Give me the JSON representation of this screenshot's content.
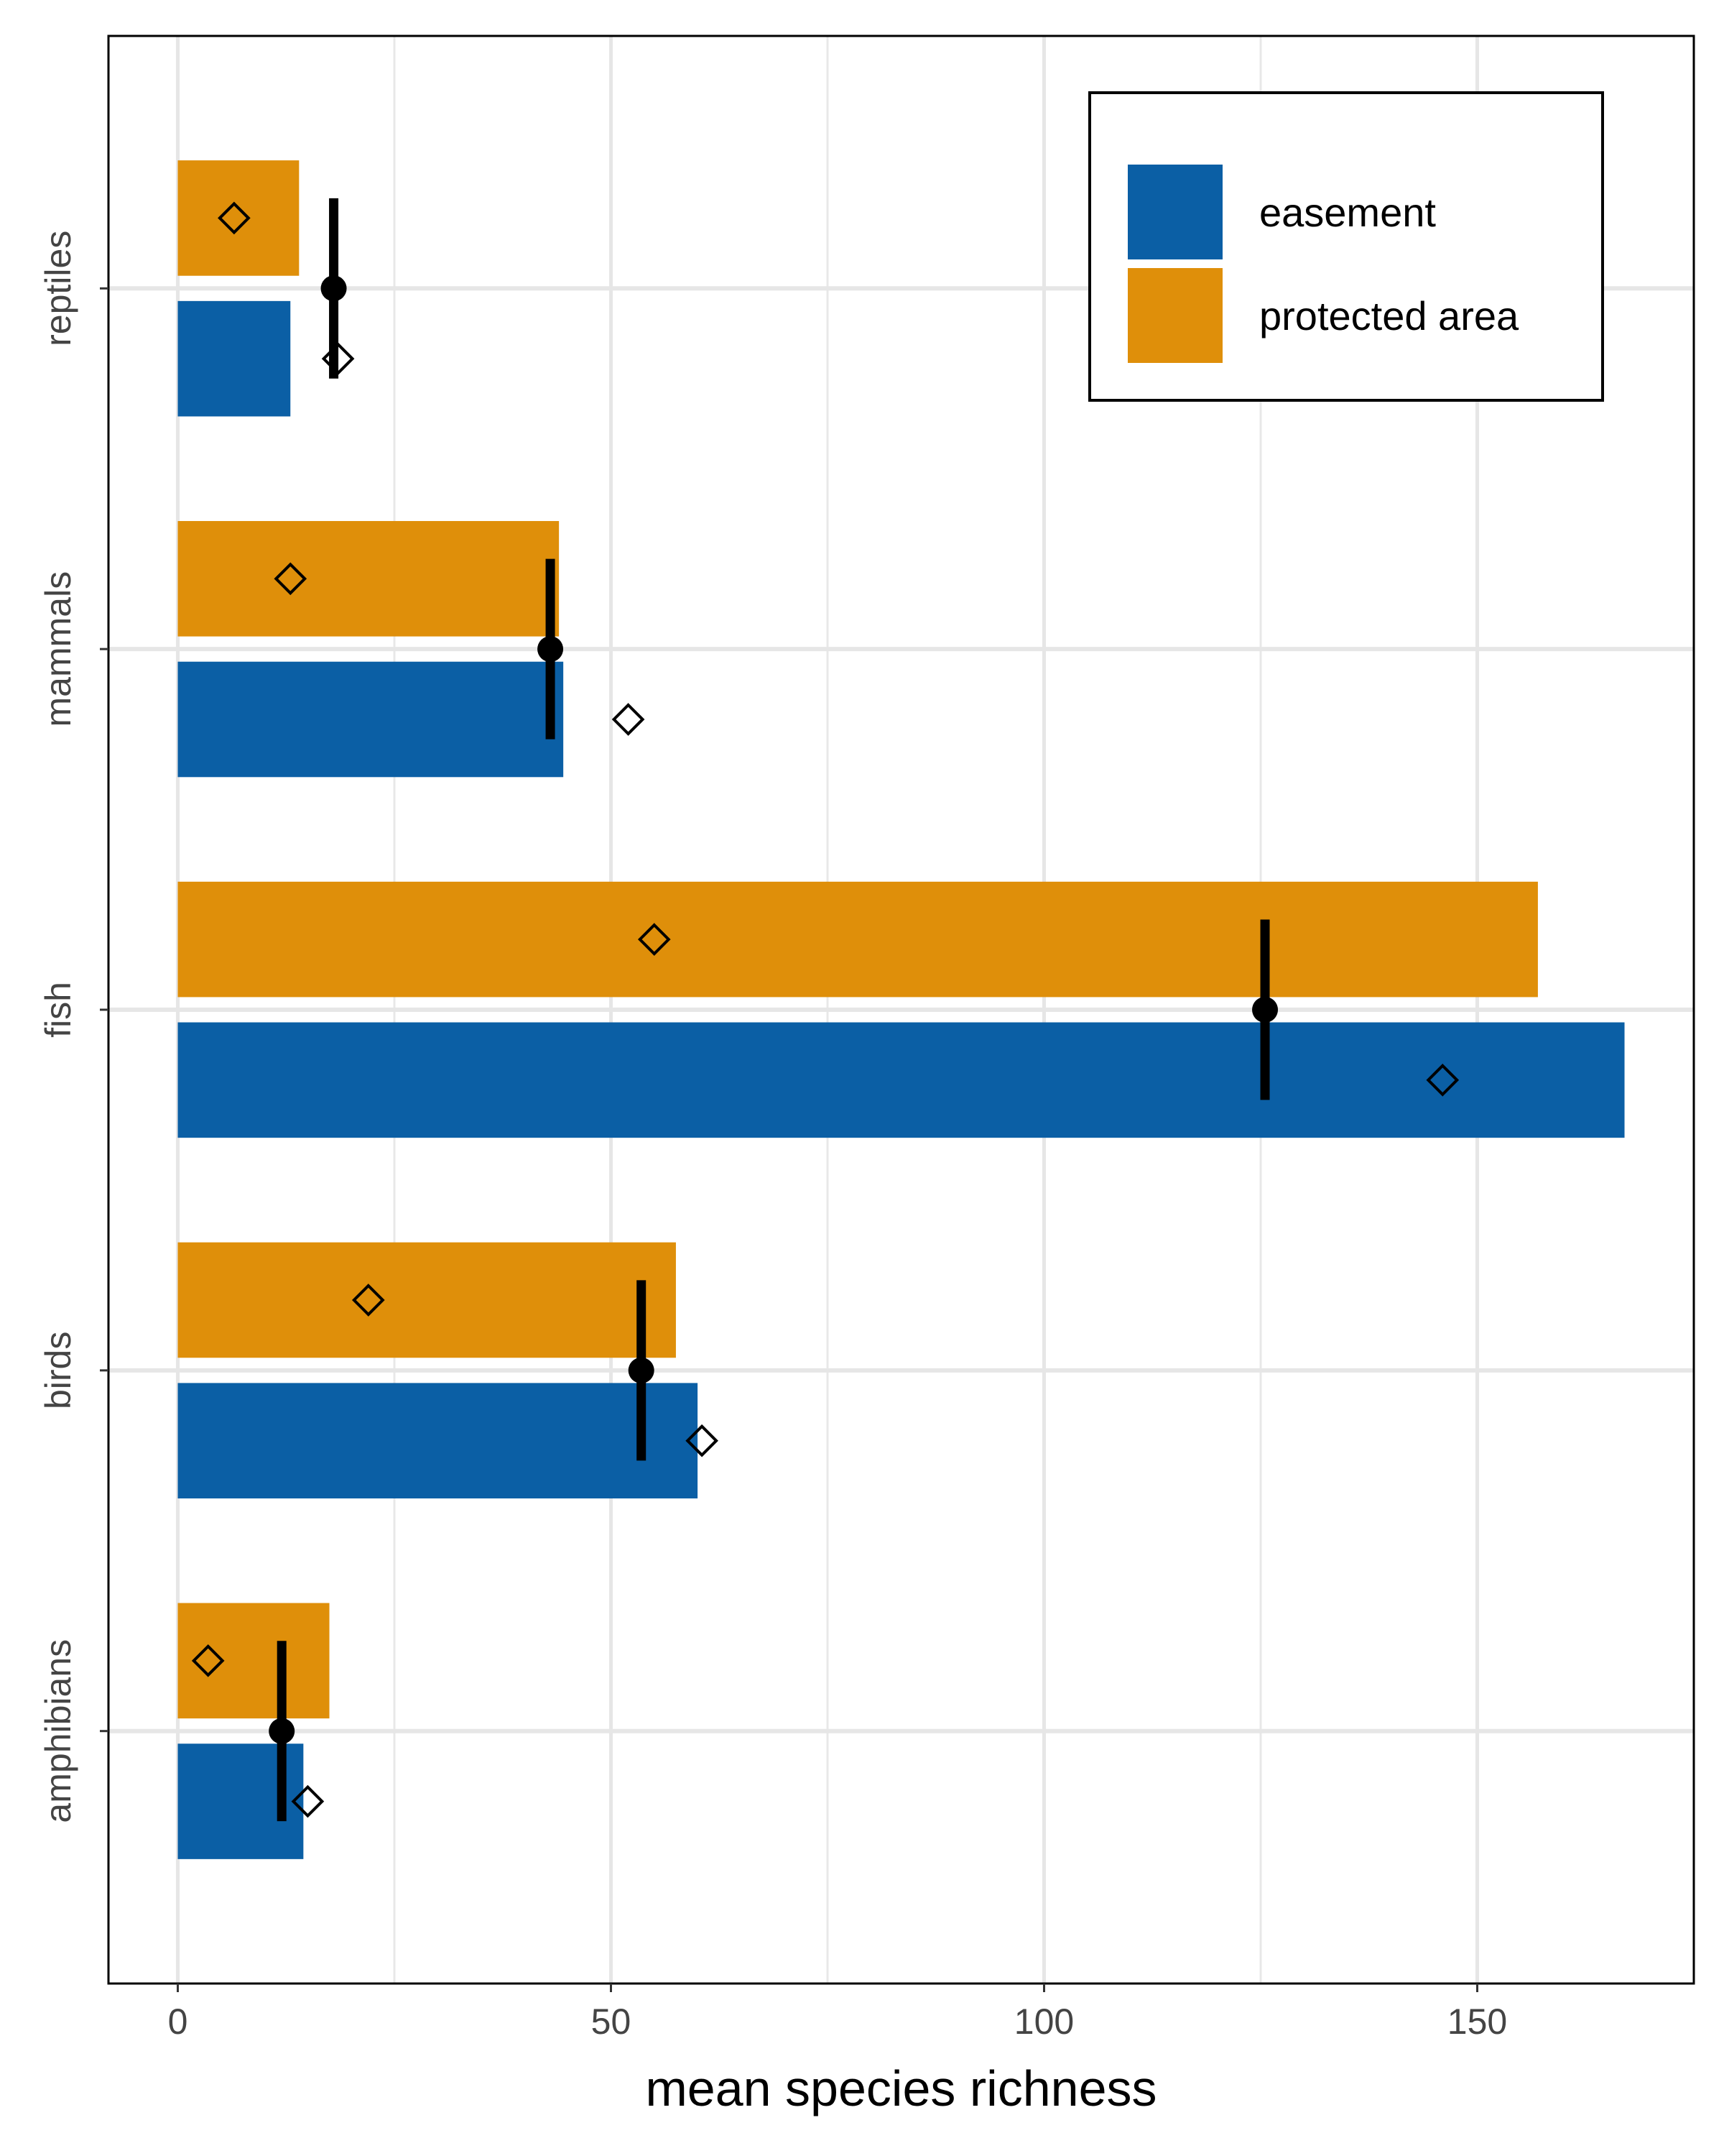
{
  "chart_data": {
    "type": "bar",
    "orientation": "horizontal",
    "title": "",
    "xlabel": "mean species richness",
    "ylabel": "",
    "categories": [
      "amphibians",
      "birds",
      "fish",
      "mammals",
      "reptiles"
    ],
    "xlim": [
      -8,
      175
    ],
    "x_ticks": [
      0,
      50,
      100,
      150
    ],
    "x_tick_labels": [
      "0",
      "50",
      "100",
      "150"
    ],
    "grid": true,
    "legend_position": "top-right",
    "series": [
      {
        "name": "easement",
        "color": "#0b5fa5",
        "values": [
          14.5,
          60,
          167,
          44.5,
          13
        ],
        "diamond_values": [
          15,
          60.5,
          146,
          52,
          18.5
        ]
      },
      {
        "name": "protected area",
        "color": "#df8f0a",
        "values": [
          17.5,
          57.5,
          157,
          44,
          14
        ],
        "diamond_values": [
          3.5,
          22,
          55,
          13,
          6.5
        ]
      }
    ],
    "point_estimates": [
      {
        "category": "amphibians",
        "value": 12,
        "lower": 12,
        "upper": 12
      },
      {
        "category": "birds",
        "value": 53.5,
        "lower": 53.5,
        "upper": 53.5
      },
      {
        "category": "fish",
        "value": 125.5,
        "lower": 125.5,
        "upper": 125.5
      },
      {
        "category": "mammals",
        "value": 43,
        "lower": 43,
        "upper": 43
      },
      {
        "category": "reptiles",
        "value": 18,
        "lower": 18,
        "upper": 18
      }
    ]
  }
}
